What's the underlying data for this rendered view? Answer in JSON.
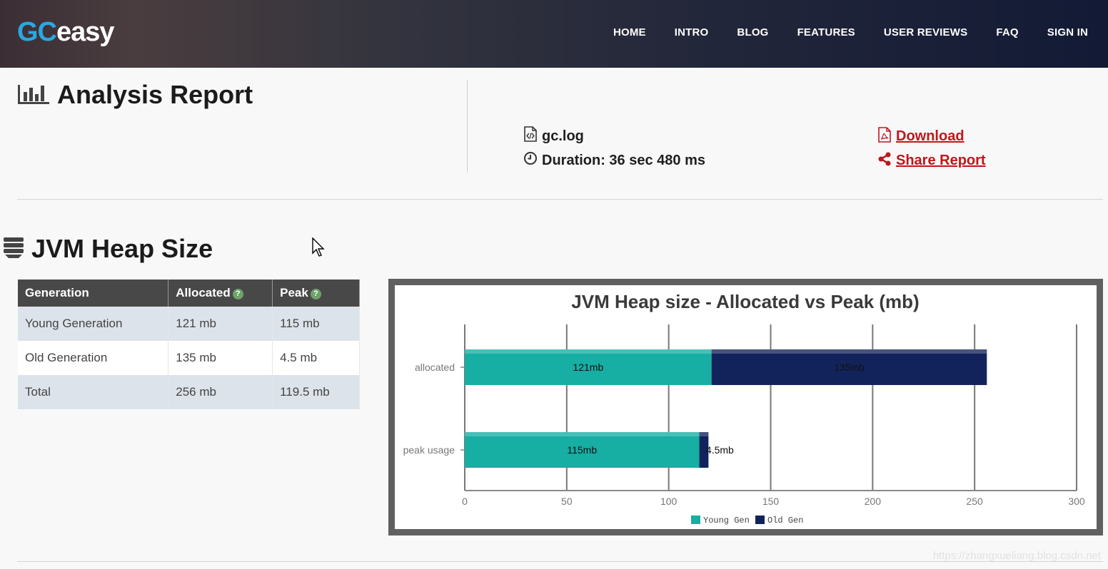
{
  "header": {
    "logo_gc": "GC",
    "logo_easy": "easy",
    "nav": [
      "HOME",
      "INTRO",
      "BLOG",
      "FEATURES",
      "USER REVIEWS",
      "FAQ",
      "SIGN IN"
    ]
  },
  "report": {
    "title": "Analysis Report",
    "file_name": "gc.log",
    "duration": "Duration: 36 sec 480 ms",
    "download_label": "Download",
    "share_label": "Share Report"
  },
  "heap": {
    "title": "JVM Heap Size",
    "table": {
      "headers": [
        "Generation",
        "Allocated",
        "Peak"
      ],
      "rows": [
        [
          "Young Generation",
          "121 mb",
          "115 mb"
        ],
        [
          "Old Generation",
          "135 mb",
          "4.5 mb"
        ],
        [
          "Total",
          "256 mb",
          "119.5 mb"
        ]
      ]
    }
  },
  "chart_data": {
    "type": "bar",
    "orientation": "horizontal",
    "stacked": true,
    "title": "JVM Heap size - Allocated vs Peak (mb)",
    "categories": [
      "allocated",
      "peak usage"
    ],
    "series": [
      {
        "name": "Young Gen",
        "values": [
          121,
          115
        ],
        "labels": [
          "121mb",
          "115mb"
        ],
        "color": "#17aea3"
      },
      {
        "name": "Old Gen",
        "values": [
          135,
          4.5
        ],
        "labels": [
          "135mb",
          "4.5mb"
        ],
        "color": "#12235c"
      }
    ],
    "xlim": [
      0,
      300
    ],
    "xticks": [
      0,
      50,
      100,
      150,
      200,
      250,
      300
    ],
    "grid": true,
    "legend": "bottom"
  },
  "watermark": "https://zhangxueliang.blog.csdn.net"
}
